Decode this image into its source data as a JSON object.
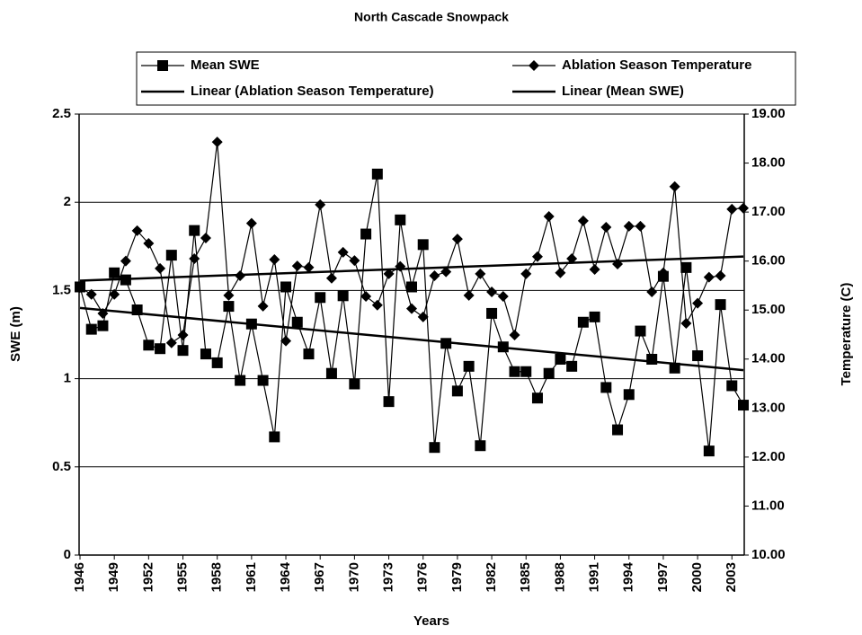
{
  "chart_data": {
    "type": "line",
    "title": "North Cascade Snowpack",
    "xlabel": "Years",
    "ylabel": "SWE (m)",
    "y2label": "Temperature (C)",
    "x": [
      1946,
      1947,
      1948,
      1949,
      1950,
      1951,
      1952,
      1953,
      1954,
      1955,
      1956,
      1957,
      1958,
      1959,
      1960,
      1961,
      1962,
      1963,
      1964,
      1965,
      1966,
      1967,
      1968,
      1969,
      1970,
      1971,
      1972,
      1973,
      1974,
      1975,
      1976,
      1977,
      1978,
      1979,
      1980,
      1981,
      1982,
      1983,
      1984,
      1985,
      1986,
      1987,
      1988,
      1989,
      1990,
      1991,
      1992,
      1993,
      1994,
      1995,
      1996,
      1997,
      1998,
      1999,
      2000,
      2001,
      2002,
      2003,
      2004
    ],
    "series": [
      {
        "name": "Mean SWE",
        "color": "#000000",
        "marker": "square",
        "axis": "y",
        "values": [
          1.52,
          1.28,
          1.3,
          1.6,
          1.56,
          1.39,
          1.19,
          1.17,
          1.7,
          1.16,
          1.84,
          1.14,
          1.09,
          1.41,
          0.99,
          1.31,
          0.99,
          0.67,
          1.52,
          1.32,
          1.14,
          1.46,
          1.03,
          1.47,
          0.97,
          1.82,
          2.16,
          0.87,
          1.9,
          1.52,
          1.76,
          0.61,
          1.2,
          0.93,
          1.07,
          0.62,
          1.37,
          1.18,
          1.04,
          1.04,
          0.89,
          1.03,
          1.11,
          1.07,
          1.32,
          1.35,
          0.95,
          0.71,
          0.91,
          1.27,
          1.11,
          1.58,
          1.06,
          1.63,
          1.13,
          0.59,
          1.42,
          0.96,
          0.85
        ]
      },
      {
        "name": "Ablation Season Temperature",
        "color": "#000000",
        "marker": "diamond",
        "axis": "y2",
        "values": [
          15.46,
          15.32,
          14.93,
          15.32,
          16.0,
          16.62,
          16.36,
          15.85,
          14.33,
          14.49,
          16.05,
          16.47,
          18.43,
          15.3,
          15.7,
          16.77,
          15.08,
          16.03,
          14.37,
          15.9,
          15.87,
          17.15,
          15.65,
          16.18,
          16.01,
          15.28,
          15.1,
          15.74,
          15.89,
          15.03,
          14.86,
          15.7,
          15.78,
          16.45,
          15.3,
          15.74,
          15.37,
          15.28,
          14.49,
          15.74,
          16.09,
          16.91,
          15.76,
          16.05,
          16.82,
          15.83,
          16.69,
          15.94,
          16.71,
          16.71,
          15.37,
          15.76,
          17.52,
          14.73,
          15.14,
          15.67,
          15.7,
          17.06,
          17.08
        ]
      }
    ],
    "trendlines": [
      {
        "name": "Linear (Ablation Season Temperature)",
        "series": 1,
        "color": "#000000"
      },
      {
        "name": "Linear (Mean SWE)",
        "series": 0,
        "color": "#000000"
      }
    ],
    "xlim": [
      1946,
      2004
    ],
    "xticks": [
      1946,
      1949,
      1952,
      1955,
      1958,
      1961,
      1964,
      1967,
      1970,
      1973,
      1976,
      1979,
      1982,
      1985,
      1988,
      1991,
      1994,
      1997,
      2000,
      2003
    ],
    "ylim": [
      0,
      2.5
    ],
    "yticks": [
      0,
      0.5,
      1,
      1.5,
      2,
      2.5
    ],
    "y2lim": [
      10,
      19
    ],
    "y2ticks": [
      {
        "value": 10,
        "label": "10.00"
      },
      {
        "value": 11,
        "label": "11.00"
      },
      {
        "value": 12,
        "label": "12.00"
      },
      {
        "value": 13,
        "label": "13.00"
      },
      {
        "value": 14,
        "label": "14.00"
      },
      {
        "value": 15,
        "label": "15.00"
      },
      {
        "value": 16,
        "label": "16.00"
      },
      {
        "value": 17,
        "label": "17.00"
      },
      {
        "value": 18,
        "label": "18.00"
      },
      {
        "value": 19,
        "label": "19.00"
      }
    ],
    "grid": true,
    "legend": "top"
  }
}
